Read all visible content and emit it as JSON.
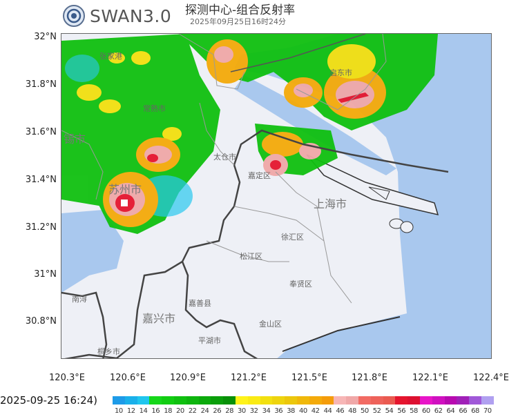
{
  "header": {
    "logo_text": "SWAN3.0",
    "title": "探测中心-组合反射率",
    "subtitle": "2025年09月25日16时24分",
    "logo_icon": "cma-logo-icon"
  },
  "axes": {
    "lat_labels": [
      "32°N",
      "31.8°N",
      "31.6°N",
      "31.4°N",
      "31.2°N",
      "31°N",
      "30.8°N"
    ],
    "lon_labels": [
      "120.3°E",
      "120.6°E",
      "120.9°E",
      "121.2°E",
      "121.5°E",
      "121.8°E",
      "122.1°E",
      "122.4°E"
    ]
  },
  "places": [
    "张家港",
    "常熟市",
    "锡市",
    "太仓市",
    "嘉定区",
    "苏州市",
    "上海市",
    "启东市",
    "徐汇区",
    "松江区",
    "奉贤区",
    "嘉善县",
    "嘉兴市",
    "金山区",
    "平湖市",
    "桐乡市",
    "南浔"
  ],
  "legend": {
    "timestamp": "2025-09-25 16:24)",
    "unit_values": [
      10,
      12,
      14,
      16,
      18,
      20,
      22,
      24,
      26,
      28,
      30,
      32,
      34,
      36,
      38,
      40,
      42,
      44,
      46,
      48,
      50,
      52,
      54,
      56,
      58,
      60,
      62,
      64,
      66,
      68,
      70
    ],
    "colors": [
      "#1e9be8",
      "#1ab0ea",
      "#20c6ee",
      "#16d71a",
      "#12cd12",
      "#10c010",
      "#0eb50e",
      "#0caa0c",
      "#0a9e0a",
      "#089008",
      "#fff31a",
      "#faeb14",
      "#f2e010",
      "#eed40e",
      "#ecc70c",
      "#f0b80a",
      "#f4aa0a",
      "#f49c0a",
      "#f7b6b6",
      "#f0a8a8",
      "#f26b63",
      "#ee625a",
      "#ea5a50",
      "#e5152e",
      "#dd1030",
      "#e815c8",
      "#d010c0",
      "#b80ab0",
      "#a020b8",
      "#a058d8",
      "#b0a0f0"
    ]
  }
}
